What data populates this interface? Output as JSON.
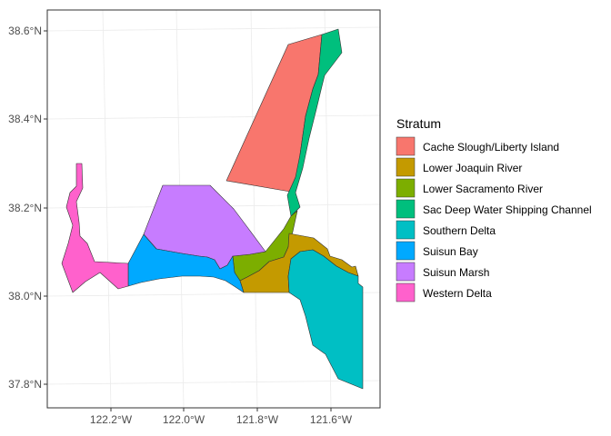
{
  "map": {
    "legend_title": "Stratum",
    "y_ticks": [
      "38.6°N",
      "38.4°N",
      "38.2°N",
      "38.0°N",
      "37.8°N"
    ],
    "x_ticks": [
      "122.2°W",
      "122.0°W",
      "121.8°W",
      "121.6°W"
    ],
    "strata": [
      {
        "name": "Cache Slough/Liberty Island",
        "color": "#F8766D"
      },
      {
        "name": "Lower Joaquin River",
        "color": "#C49A00"
      },
      {
        "name": "Lower Sacramento River",
        "color": "#7CAE00"
      },
      {
        "name": "Sac Deep Water Shipping Channel",
        "color": "#00BF7D"
      },
      {
        "name": "Southern Delta",
        "color": "#00BFC4"
      },
      {
        "name": "Suisun Bay",
        "color": "#00A9FF"
      },
      {
        "name": "Suisun Marsh",
        "color": "#C77CFF"
      },
      {
        "name": "Western Delta",
        "color": "#FF61CC"
      }
    ]
  }
}
